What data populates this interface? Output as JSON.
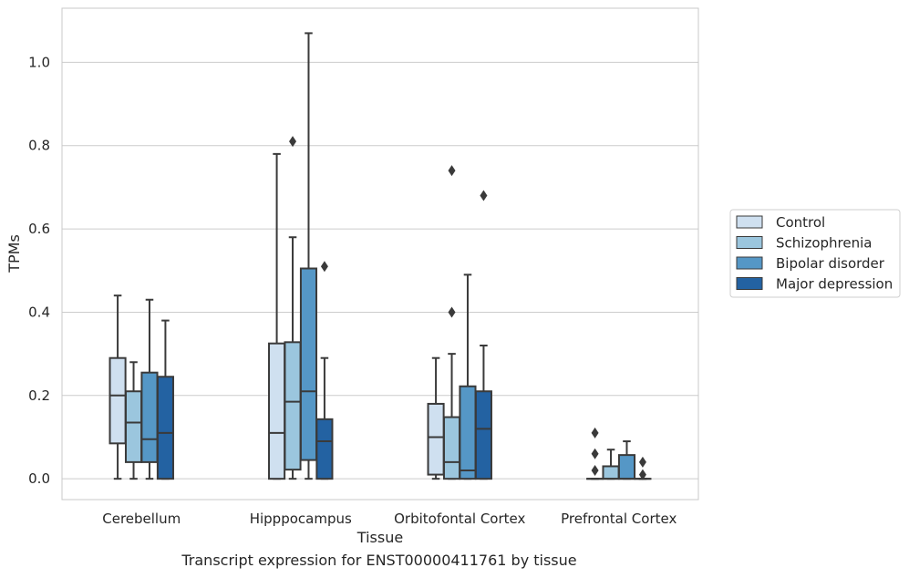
{
  "caption": "Transcript expression for ENST00000411761 by tissue",
  "colors": {
    "Control": "#cfe0f0",
    "Schizophrenia": "#9bc6de",
    "Bipolar disorder": "#5597c6",
    "Major depression": "#2362a2",
    "edge": "#3a3a3a",
    "grid": "#cccccc",
    "frame": "#c8c8c8"
  },
  "chart_data": {
    "type": "box",
    "xlabel": "Tissue",
    "ylabel": "TPMs",
    "ylim": [
      -0.05,
      1.13
    ],
    "yticks": [
      0.0,
      0.2,
      0.4,
      0.6,
      0.8,
      1.0
    ],
    "ytick_labels": [
      "0.0",
      "0.2",
      "0.4",
      "0.6",
      "0.8",
      "1.0"
    ],
    "grid": "horizontal",
    "legend_position": "right",
    "categories": [
      "Cerebellum",
      "Hipppocampus",
      "Orbitofontal Cortex",
      "Prefrontal Cortex"
    ],
    "series": [
      {
        "name": "Control",
        "boxes": [
          {
            "whislo": 0.0,
            "q1": 0.085,
            "med": 0.2,
            "q3": 0.29,
            "whishi": 0.44,
            "fliers": []
          },
          {
            "whislo": 0.0,
            "q1": 0.0,
            "med": 0.11,
            "q3": 0.325,
            "whishi": 0.78,
            "fliers": []
          },
          {
            "whislo": 0.0,
            "q1": 0.01,
            "med": 0.1,
            "q3": 0.18,
            "whishi": 0.29,
            "fliers": []
          },
          {
            "whislo": 0.0,
            "q1": 0.0,
            "med": 0.0,
            "q3": 0.0,
            "whishi": 0.0,
            "fliers": [
              0.02,
              0.06,
              0.11
            ]
          }
        ]
      },
      {
        "name": "Schizophrenia",
        "boxes": [
          {
            "whislo": 0.0,
            "q1": 0.04,
            "med": 0.135,
            "q3": 0.21,
            "whishi": 0.28,
            "fliers": []
          },
          {
            "whislo": 0.0,
            "q1": 0.022,
            "med": 0.185,
            "q3": 0.328,
            "whishi": 0.58,
            "fliers": [
              0.81
            ]
          },
          {
            "whislo": 0.0,
            "q1": 0.0,
            "med": 0.04,
            "q3": 0.148,
            "whishi": 0.3,
            "fliers": [
              0.4,
              0.74
            ]
          },
          {
            "whislo": 0.0,
            "q1": 0.0,
            "med": 0.0,
            "q3": 0.03,
            "whishi": 0.07,
            "fliers": []
          }
        ]
      },
      {
        "name": "Bipolar disorder",
        "boxes": [
          {
            "whislo": 0.0,
            "q1": 0.04,
            "med": 0.095,
            "q3": 0.255,
            "whishi": 0.43,
            "fliers": []
          },
          {
            "whislo": 0.0,
            "q1": 0.045,
            "med": 0.21,
            "q3": 0.505,
            "whishi": 1.07,
            "fliers": []
          },
          {
            "whislo": 0.0,
            "q1": 0.0,
            "med": 0.02,
            "q3": 0.222,
            "whishi": 0.49,
            "fliers": []
          },
          {
            "whislo": 0.0,
            "q1": 0.0,
            "med": 0.0,
            "q3": 0.057,
            "whishi": 0.09,
            "fliers": []
          }
        ]
      },
      {
        "name": "Major depression",
        "boxes": [
          {
            "whislo": 0.0,
            "q1": 0.0,
            "med": 0.11,
            "q3": 0.245,
            "whishi": 0.38,
            "fliers": []
          },
          {
            "whislo": 0.0,
            "q1": 0.0,
            "med": 0.09,
            "q3": 0.143,
            "whishi": 0.29,
            "fliers": [
              0.51
            ]
          },
          {
            "whislo": 0.0,
            "q1": 0.0,
            "med": 0.12,
            "q3": 0.21,
            "whishi": 0.32,
            "fliers": [
              0.68
            ]
          },
          {
            "whislo": 0.0,
            "q1": 0.0,
            "med": 0.0,
            "q3": 0.0,
            "whishi": 0.0,
            "fliers": [
              0.01,
              0.04
            ]
          }
        ]
      }
    ]
  }
}
